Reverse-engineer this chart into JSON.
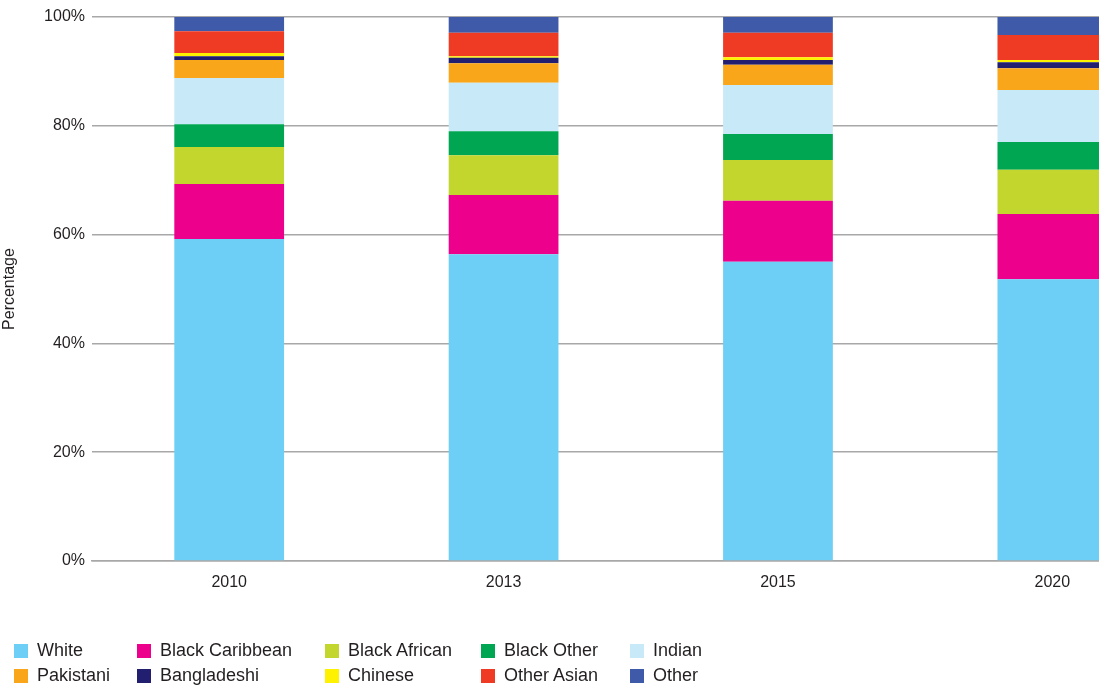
{
  "chart_data": {
    "type": "bar",
    "stacked": true,
    "ylabel": "Percentage",
    "categories": [
      "2010",
      "2013",
      "2015",
      "2020"
    ],
    "series": [
      {
        "name": "White",
        "color": "#6dcff6",
        "values": [
          59.2,
          56.4,
          55.0,
          51.8
        ]
      },
      {
        "name": "Black Caribbean",
        "color": "#ec008c",
        "values": [
          10.1,
          10.9,
          11.2,
          12.0
        ]
      },
      {
        "name": "Black African",
        "color": "#c2d62e",
        "values": [
          6.8,
          7.3,
          7.5,
          8.1
        ]
      },
      {
        "name": "Black Other",
        "color": "#00a651",
        "values": [
          4.2,
          4.4,
          4.8,
          5.1
        ]
      },
      {
        "name": "Indian",
        "color": "#c7e9f8",
        "values": [
          8.5,
          8.9,
          9.0,
          9.6
        ]
      },
      {
        "name": "Pakistani",
        "color": "#faa61a",
        "values": [
          3.3,
          3.6,
          3.7,
          4.0
        ]
      },
      {
        "name": "Bangladeshi",
        "color": "#231f70",
        "values": [
          0.7,
          1.0,
          0.9,
          1.1
        ]
      },
      {
        "name": "Chinese",
        "color": "#fff200",
        "values": [
          0.6,
          0.3,
          0.5,
          0.4
        ]
      },
      {
        "name": "Other Asian",
        "color": "#ef3b23",
        "values": [
          4.0,
          4.3,
          4.5,
          4.6
        ]
      },
      {
        "name": "Other",
        "color": "#3e5aa8",
        "values": [
          2.6,
          2.9,
          2.9,
          3.3
        ]
      }
    ],
    "ylim": [
      0,
      100
    ],
    "yticks": [
      {
        "value": 0,
        "label": "0%"
      },
      {
        "value": 20,
        "label": "20%"
      },
      {
        "value": 40,
        "label": "40%"
      },
      {
        "value": 60,
        "label": "60%"
      },
      {
        "value": 80,
        "label": "80%"
      },
      {
        "value": 100,
        "label": "100%"
      }
    ],
    "grid": "y",
    "legend": "bottom"
  }
}
